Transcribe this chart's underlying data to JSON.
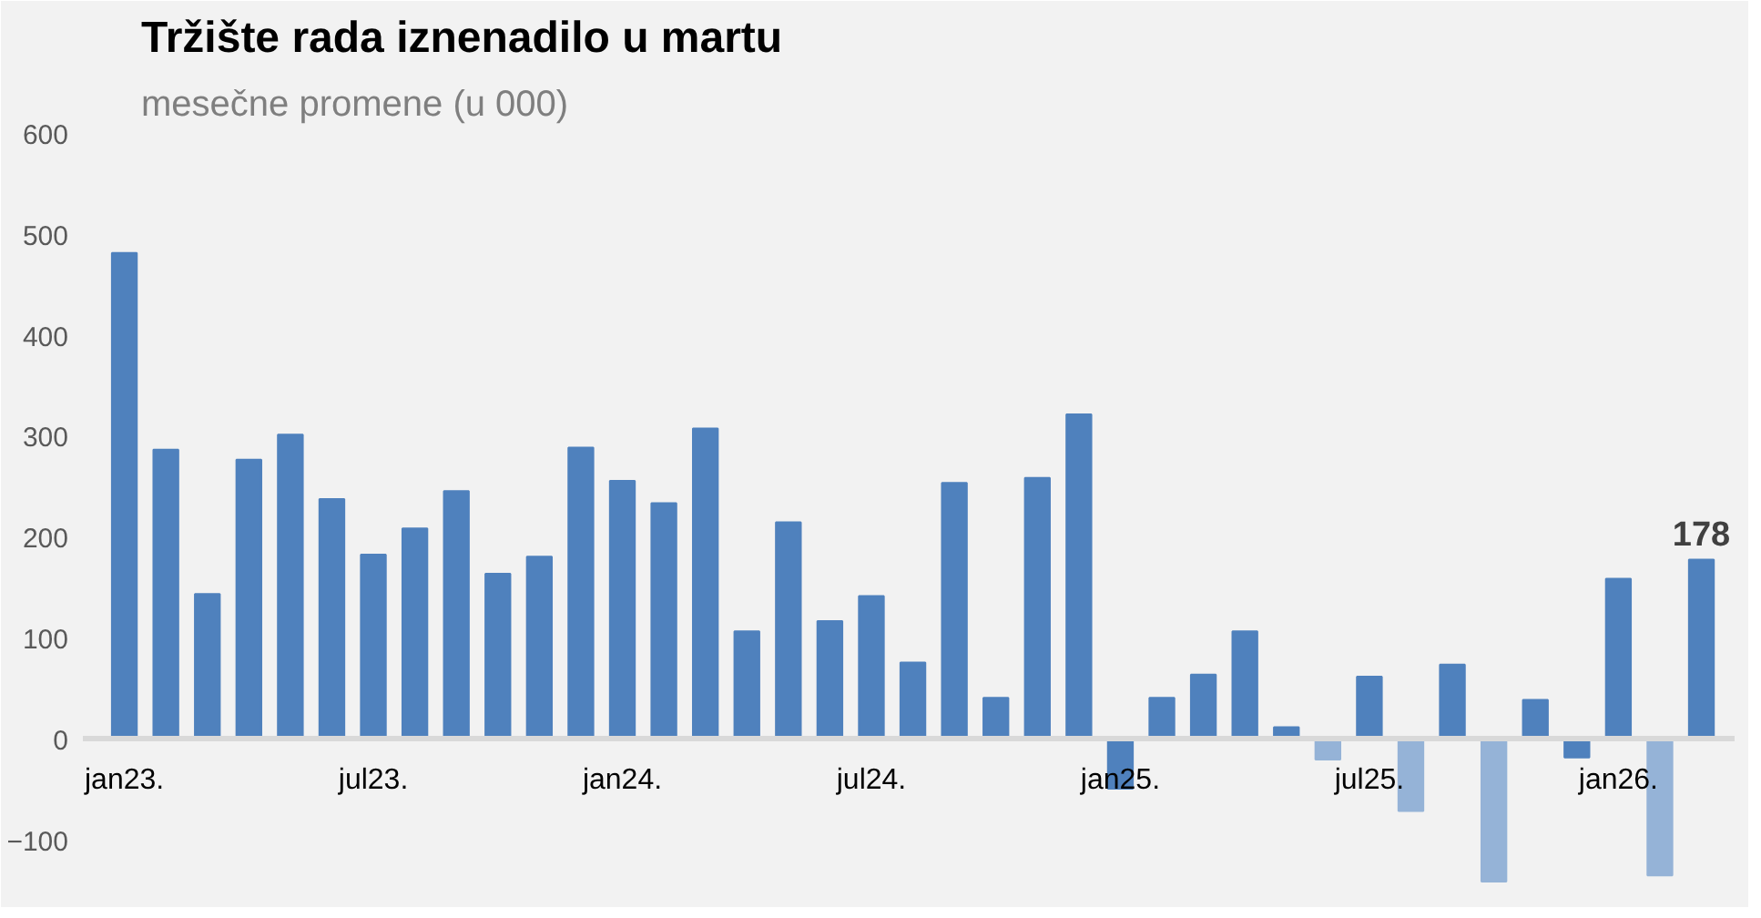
{
  "chart_data": {
    "type": "bar",
    "title": "Tržište rada iznenadilo u martu",
    "subtitle": "mesečne promene (u 000)",
    "categories": [
      "jan23.",
      null,
      null,
      null,
      null,
      null,
      "jul23.",
      null,
      null,
      null,
      null,
      null,
      "jan24.",
      null,
      null,
      null,
      null,
      null,
      "jul24.",
      null,
      null,
      null,
      null,
      null,
      "jan25.",
      null,
      null,
      null,
      null,
      null,
      "jul25.",
      null,
      null,
      null,
      null,
      null,
      "jan26.",
      null,
      null
    ],
    "values": [
      482,
      287,
      144,
      277,
      302,
      238,
      183,
      209,
      246,
      164,
      181,
      289,
      256,
      234,
      308,
      107,
      215,
      117,
      142,
      76,
      254,
      41,
      259,
      322,
      -49,
      41,
      64,
      107,
      12,
      -20,
      62,
      -71,
      74,
      -141,
      39,
      -18,
      159,
      -135,
      178
    ],
    "colors": [
      "#4f81bd",
      "#4f81bd",
      "#4f81bd",
      "#4f81bd",
      "#4f81bd",
      "#4f81bd",
      "#4f81bd",
      "#4f81bd",
      "#4f81bd",
      "#4f81bd",
      "#4f81bd",
      "#4f81bd",
      "#4f81bd",
      "#4f81bd",
      "#4f81bd",
      "#4f81bd",
      "#4f81bd",
      "#4f81bd",
      "#4f81bd",
      "#4f81bd",
      "#4f81bd",
      "#4f81bd",
      "#4f81bd",
      "#4f81bd",
      "#4f81bd",
      "#4f81bd",
      "#4f81bd",
      "#4f81bd",
      "#4f81bd",
      "#95b3d7",
      "#4f81bd",
      "#95b3d7",
      "#4f81bd",
      "#95b3d7",
      "#4f81bd",
      "#4f81bd",
      "#4f81bd",
      "#95b3d7",
      "#4f81bd"
    ],
    "value_labels": [
      null,
      null,
      null,
      null,
      null,
      null,
      null,
      null,
      null,
      null,
      null,
      null,
      null,
      null,
      null,
      null,
      null,
      null,
      null,
      null,
      null,
      null,
      null,
      null,
      null,
      null,
      null,
      null,
      null,
      null,
      null,
      null,
      null,
      null,
      null,
      null,
      null,
      null,
      "178"
    ],
    "ylim": [
      -160,
      600
    ],
    "yticks": [
      -100,
      0,
      100,
      200,
      300,
      400,
      500,
      600
    ]
  }
}
